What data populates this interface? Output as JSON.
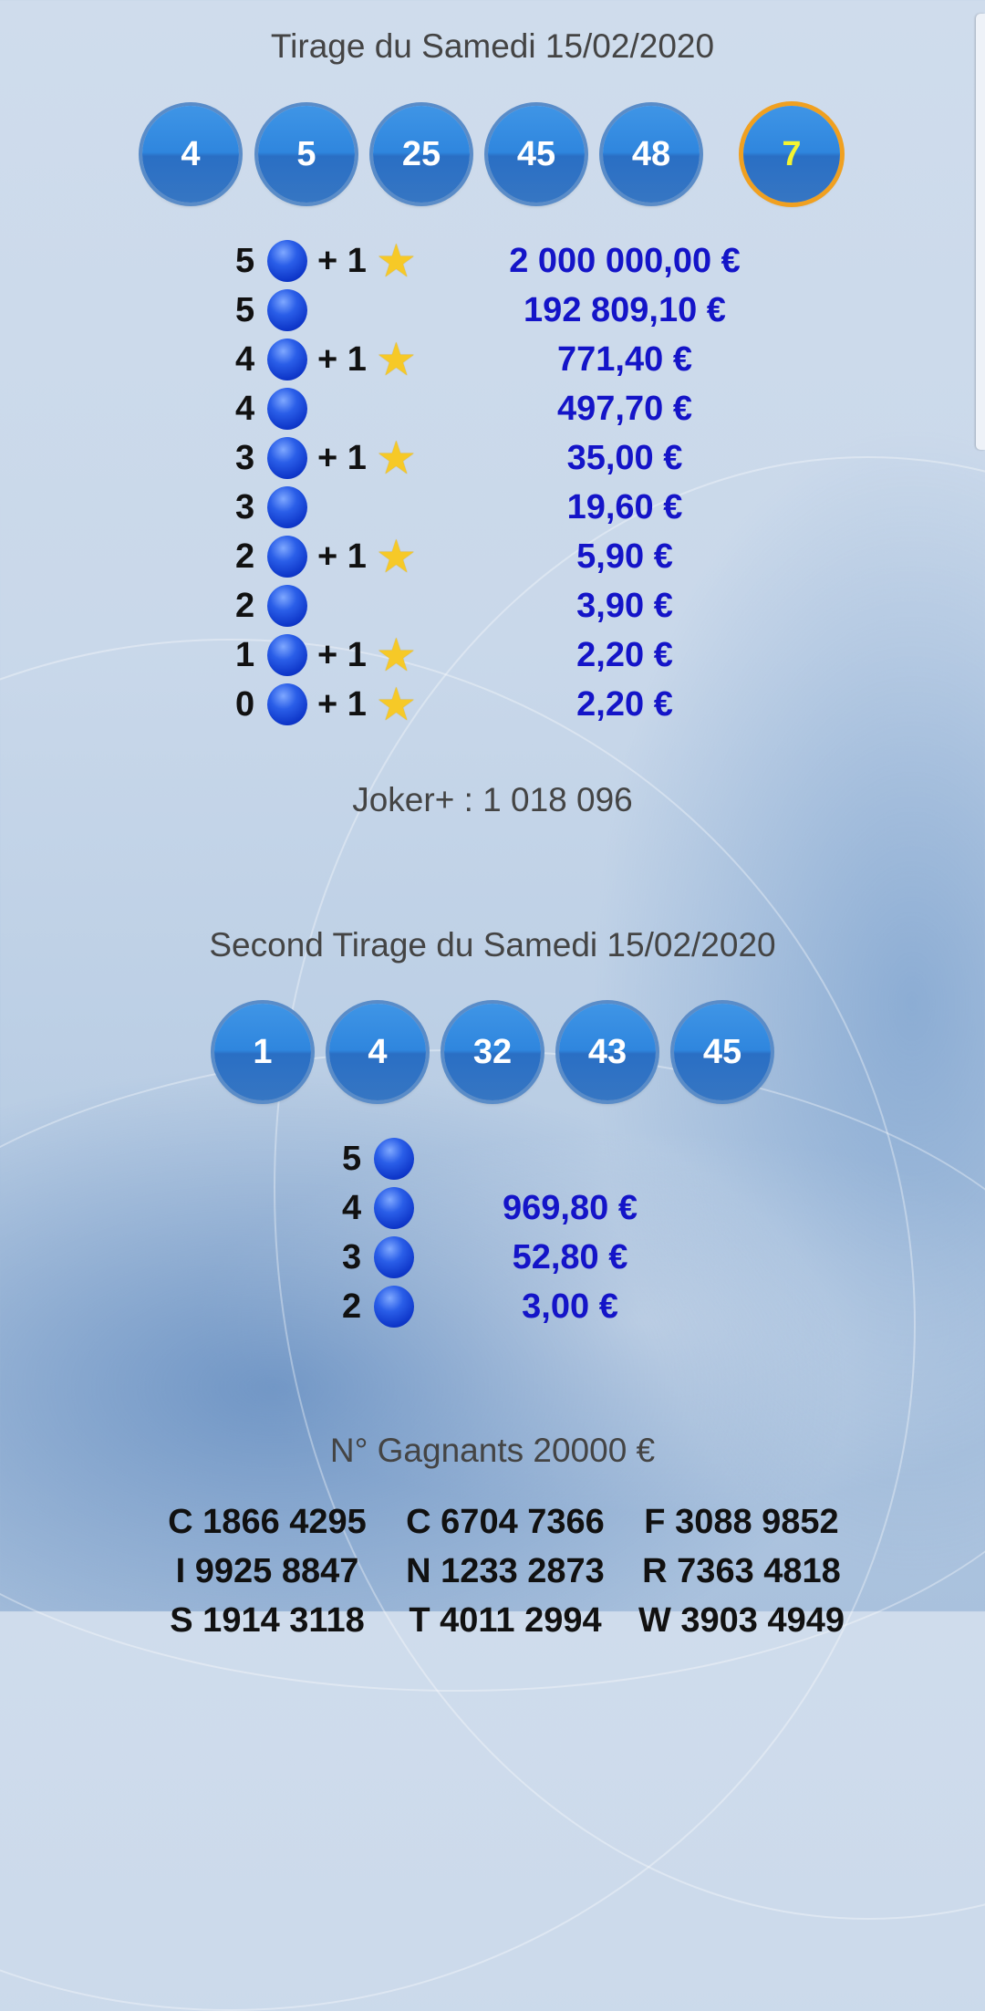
{
  "draw1": {
    "title": "Tirage du Samedi 15/02/2020",
    "balls": [
      "4",
      "5",
      "25",
      "45",
      "48"
    ],
    "lucky": "7",
    "rows": [
      {
        "count": "5",
        "plus": "+ 1",
        "star": true,
        "amount": "2 000 000,00 €"
      },
      {
        "count": "5",
        "plus": "",
        "star": false,
        "amount": "192 809,10 €"
      },
      {
        "count": "4",
        "plus": "+ 1",
        "star": true,
        "amount": "771,40 €"
      },
      {
        "count": "4",
        "plus": "",
        "star": false,
        "amount": "497,70 €"
      },
      {
        "count": "3",
        "plus": "+ 1",
        "star": true,
        "amount": "35,00 €"
      },
      {
        "count": "3",
        "plus": "",
        "star": false,
        "amount": "19,60 €"
      },
      {
        "count": "2",
        "plus": "+ 1",
        "star": true,
        "amount": "5,90 €"
      },
      {
        "count": "2",
        "plus": "",
        "star": false,
        "amount": "3,90 €"
      },
      {
        "count": "1",
        "plus": "+ 1",
        "star": true,
        "amount": "2,20 €"
      },
      {
        "count": "0",
        "plus": "+ 1",
        "star": true,
        "amount": "2,20 €"
      }
    ],
    "joker": "Joker+ : 1 018 096"
  },
  "draw2": {
    "title": "Second Tirage du Samedi 15/02/2020",
    "balls": [
      "1",
      "4",
      "32",
      "43",
      "45"
    ],
    "rows": [
      {
        "count": "5",
        "amount": ""
      },
      {
        "count": "4",
        "amount": "969,80 €"
      },
      {
        "count": "3",
        "amount": "52,80 €"
      },
      {
        "count": "2",
        "amount": "3,00 €"
      }
    ]
  },
  "winners": {
    "title": "N° Gagnants 20000 €",
    "codes": [
      [
        "C 1866 4295",
        "C 6704 7366",
        "F 3088 9852"
      ],
      [
        "I 9925 8847",
        "N 1233 2873",
        "R 7363 4818"
      ],
      [
        "S 1914 3118",
        "T 4011 2994",
        "W 3903 4949"
      ]
    ]
  },
  "colors": {
    "amount": "#1414c8",
    "ball": "#2f86de",
    "lucky_ring": "#f0a020",
    "lucky_text": "#f4f430"
  }
}
